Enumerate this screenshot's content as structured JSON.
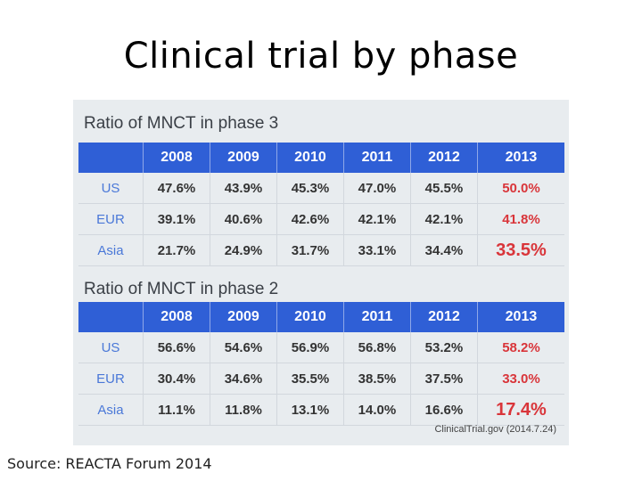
{
  "title": "Clinical trial by phase",
  "phase3": {
    "heading": "Ratio of MNCT in phase 3",
    "years": [
      "2008",
      "2009",
      "2010",
      "2011",
      "2012",
      "2013"
    ],
    "rows": [
      {
        "region": "US",
        "values": [
          "47.6%",
          "43.9%",
          "45.3%",
          "47.0%",
          "45.5%",
          "50.0%"
        ]
      },
      {
        "region": "EUR",
        "values": [
          "39.1%",
          "40.6%",
          "42.6%",
          "42.1%",
          "42.1%",
          "41.8%"
        ]
      },
      {
        "region": "Asia",
        "values": [
          "21.7%",
          "24.9%",
          "31.7%",
          "33.1%",
          "34.4%",
          "33.5%"
        ]
      }
    ]
  },
  "phase2": {
    "heading": "Ratio of MNCT in phase 2",
    "years": [
      "2008",
      "2009",
      "2010",
      "2011",
      "2012",
      "2013"
    ],
    "rows": [
      {
        "region": "US",
        "values": [
          "56.6%",
          "54.6%",
          "56.9%",
          "56.8%",
          "53.2%",
          "58.2%"
        ]
      },
      {
        "region": "EUR",
        "values": [
          "30.4%",
          "34.6%",
          "35.5%",
          "38.5%",
          "37.5%",
          "33.0%"
        ]
      },
      {
        "region": "Asia",
        "values": [
          "11.1%",
          "11.8%",
          "13.1%",
          "14.0%",
          "16.6%",
          "17.4%"
        ]
      }
    ]
  },
  "data_source": "ClinicalTrial.gov  (2014.7.24)",
  "caption": "Source: REACTA Forum 2014",
  "colors": {
    "header_bg": "#2f5fd6",
    "highlight": "#d9353a",
    "region_label": "#4a78d8"
  }
}
